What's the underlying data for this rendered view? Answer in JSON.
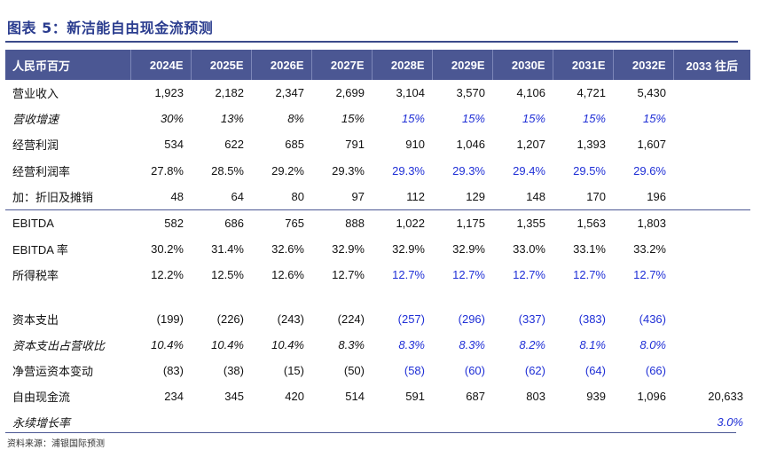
{
  "title": "图表 5：新洁能自由现金流预测",
  "source": "资料来源：浦银国际预测",
  "header": [
    "人民币百万",
    "2024E",
    "2025E",
    "2026E",
    "2027E",
    "2028E",
    "2029E",
    "2030E",
    "2031E",
    "2032E",
    "2033 往后"
  ],
  "colors": {
    "header_bg": "#4b5793",
    "title": "#2b3d8f",
    "forecast": "#1f2fd6"
  },
  "rows": [
    {
      "label": "营业收入",
      "values": [
        "1,923",
        "2,182",
        "2,347",
        "2,699",
        "3,104",
        "3,570",
        "4,106",
        "4,721",
        "5,430",
        ""
      ]
    },
    {
      "label": "营收增速",
      "values": [
        "30%",
        "13%",
        "8%",
        "15%",
        "15%",
        "15%",
        "15%",
        "15%",
        "15%",
        ""
      ]
    },
    {
      "label": "经营利润",
      "values": [
        "534",
        "622",
        "685",
        "791",
        "910",
        "1,046",
        "1,207",
        "1,393",
        "1,607",
        ""
      ]
    },
    {
      "label": "经营利润率",
      "values": [
        "27.8%",
        "28.5%",
        "29.2%",
        "29.3%",
        "29.3%",
        "29.3%",
        "29.4%",
        "29.5%",
        "29.6%",
        ""
      ]
    },
    {
      "label": "加：折旧及摊销",
      "values": [
        "48",
        "64",
        "80",
        "97",
        "112",
        "129",
        "148",
        "170",
        "196",
        ""
      ]
    },
    {
      "label": "EBITDA",
      "values": [
        "582",
        "686",
        "765",
        "888",
        "1,022",
        "1,175",
        "1,355",
        "1,563",
        "1,803",
        ""
      ]
    },
    {
      "label": "EBITDA 率",
      "values": [
        "30.2%",
        "31.4%",
        "32.6%",
        "32.9%",
        "32.9%",
        "32.9%",
        "33.0%",
        "33.1%",
        "33.2%",
        ""
      ]
    },
    {
      "label": "所得税率",
      "values": [
        "12.2%",
        "12.5%",
        "12.6%",
        "12.7%",
        "12.7%",
        "12.7%",
        "12.7%",
        "12.7%",
        "12.7%",
        ""
      ]
    },
    {
      "label": "资本支出",
      "values": [
        "(199)",
        "(226)",
        "(243)",
        "(224)",
        "(257)",
        "(296)",
        "(337)",
        "(383)",
        "(436)",
        ""
      ]
    },
    {
      "label": "资本支出占营收比",
      "values": [
        "10.4%",
        "10.4%",
        "10.4%",
        "8.3%",
        "8.3%",
        "8.3%",
        "8.2%",
        "8.1%",
        "8.0%",
        ""
      ]
    },
    {
      "label": "净营运资本变动",
      "values": [
        "(83)",
        "(38)",
        "(15)",
        "(50)",
        "(58)",
        "(60)",
        "(62)",
        "(64)",
        "(66)",
        ""
      ]
    },
    {
      "label": "自由现金流",
      "values": [
        "234",
        "345",
        "420",
        "514",
        "591",
        "687",
        "803",
        "939",
        "1,096",
        "20,633"
      ]
    },
    {
      "label": "永续增长率",
      "values": [
        "",
        "",
        "",
        "",
        "",
        "",
        "",
        "",
        "",
        "3.0%"
      ]
    }
  ]
}
